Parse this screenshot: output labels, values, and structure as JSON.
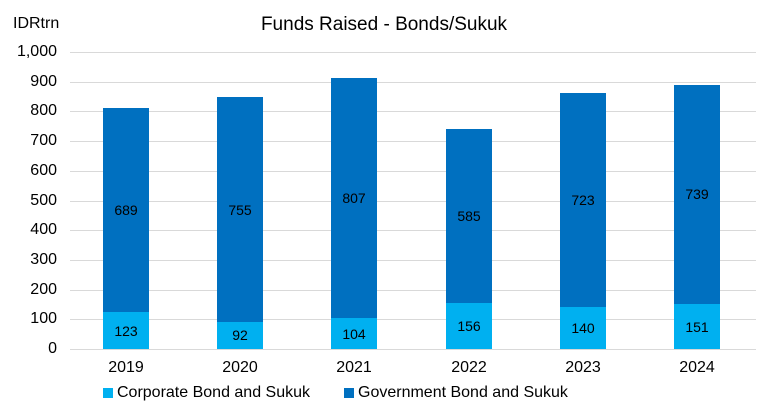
{
  "chart_data": {
    "type": "bar",
    "stacked": true,
    "title": "Funds Raised - Bonds/Sukuk",
    "ylabel": "IDRtrn",
    "xlabel": "",
    "ylim": [
      0,
      1000
    ],
    "yticks": [
      "0",
      "100",
      "200",
      "300",
      "400",
      "500",
      "600",
      "700",
      "800",
      "900",
      "1,000"
    ],
    "grid": true,
    "legend_position": "bottom",
    "categories": [
      "2019",
      "2020",
      "2021",
      "2022",
      "2023",
      "2024"
    ],
    "series": [
      {
        "name": "Corporate Bond and Sukuk",
        "color": "#00b0f0",
        "values": [
          123,
          92,
          104,
          156,
          140,
          151
        ]
      },
      {
        "name": "Government Bond and Sukuk",
        "color": "#0070c0",
        "values": [
          689,
          755,
          807,
          585,
          723,
          739
        ]
      }
    ]
  }
}
